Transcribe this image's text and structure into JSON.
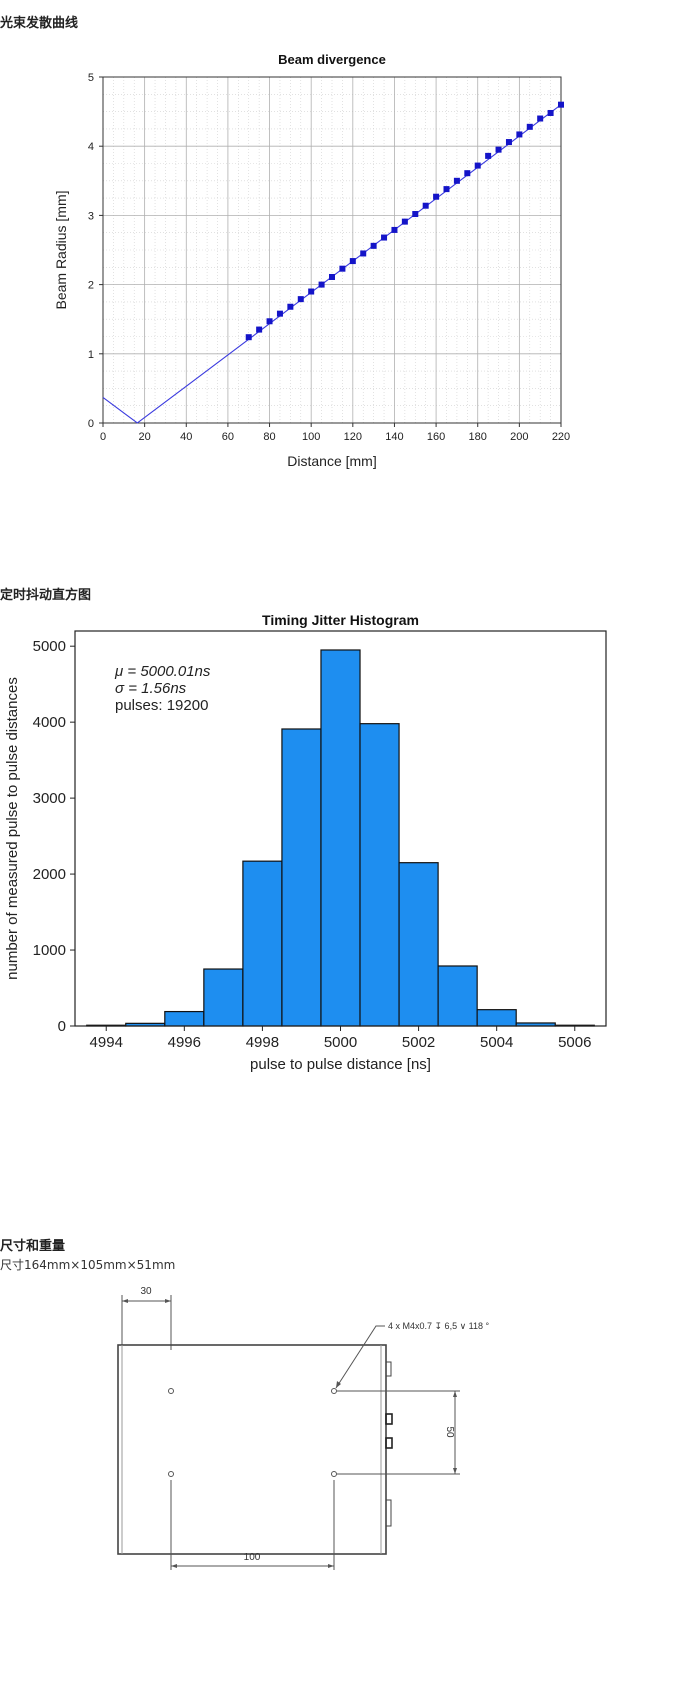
{
  "sections": [
    {
      "title": "光束发散曲线"
    },
    {
      "title": "定时抖动直方图"
    },
    {
      "title": "尺寸和重量",
      "subtitle": "尺寸164mm×105mm×51mm"
    }
  ],
  "colors": {
    "beam_line": "#3b3bdf",
    "beam_marker": "#1414c8",
    "hist_bar": "#1e8ef0",
    "grid": "#b0b0b0"
  },
  "chart_data": [
    {
      "type": "scatter",
      "title": "Beam divergence",
      "xlabel": "Distance [mm]",
      "ylabel": "Beam Radius [mm]",
      "xlim": [
        0,
        220
      ],
      "ylim": [
        0,
        5
      ],
      "xticks": [
        "0",
        "20",
        "40",
        "60",
        "80",
        "100",
        "120",
        "140",
        "160",
        "180",
        "200",
        "220"
      ],
      "yticks": [
        "0",
        "1",
        "2",
        "3",
        "4",
        "5"
      ],
      "grid": true,
      "fit_line": {
        "x": [
          0,
          16.5,
          220
        ],
        "y": [
          0.37,
          0,
          4.6
        ]
      },
      "points": {
        "x": [
          70,
          75,
          80,
          85,
          90,
          95,
          100,
          105,
          110,
          115,
          120,
          125,
          130,
          135,
          140,
          145,
          150,
          155,
          160,
          165,
          170,
          175,
          180,
          185,
          190,
          195,
          200,
          205,
          210,
          215,
          220
        ],
        "y": [
          1.24,
          1.35,
          1.47,
          1.58,
          1.68,
          1.79,
          1.9,
          2.0,
          2.11,
          2.23,
          2.34,
          2.45,
          2.56,
          2.68,
          2.79,
          2.91,
          3.02,
          3.14,
          3.27,
          3.38,
          3.5,
          3.61,
          3.72,
          3.86,
          3.95,
          4.06,
          4.17,
          4.28,
          4.4,
          4.48,
          4.6
        ]
      }
    },
    {
      "type": "bar",
      "title": "Timing Jitter Histogram",
      "xlabel": "pulse to pulse distance [ns]",
      "ylabel": "number of measured pulse to pulse distances",
      "xlim": [
        4993.2,
        5006.8
      ],
      "ylim": [
        0,
        5200
      ],
      "xticks": [
        "4994",
        "4996",
        "4998",
        "5000",
        "5002",
        "5004",
        "5006"
      ],
      "yticks": [
        "0",
        "1000",
        "2000",
        "3000",
        "4000",
        "5000"
      ],
      "grid": false,
      "bin_edges": [
        4993.5,
        4994.5,
        4995.5,
        4996.5,
        4997.5,
        4998.5,
        4999.5,
        5000.5,
        5001.5,
        5002.5,
        5003.5,
        5004.5,
        5005.5,
        5006.5
      ],
      "values": [
        10,
        35,
        190,
        750,
        2170,
        3910,
        4950,
        3980,
        2150,
        790,
        215,
        40,
        10
      ],
      "annotations": [
        "μ = 5000.01ns",
        "σ = 1.56ns",
        "pulses: 19200"
      ]
    }
  ],
  "drawing": {
    "dim_top": "30",
    "dim_bottom": "100",
    "dim_right": "50",
    "thread_note": "4 x M4x0.7 ↧ 6,5 ∨ 118 °"
  }
}
